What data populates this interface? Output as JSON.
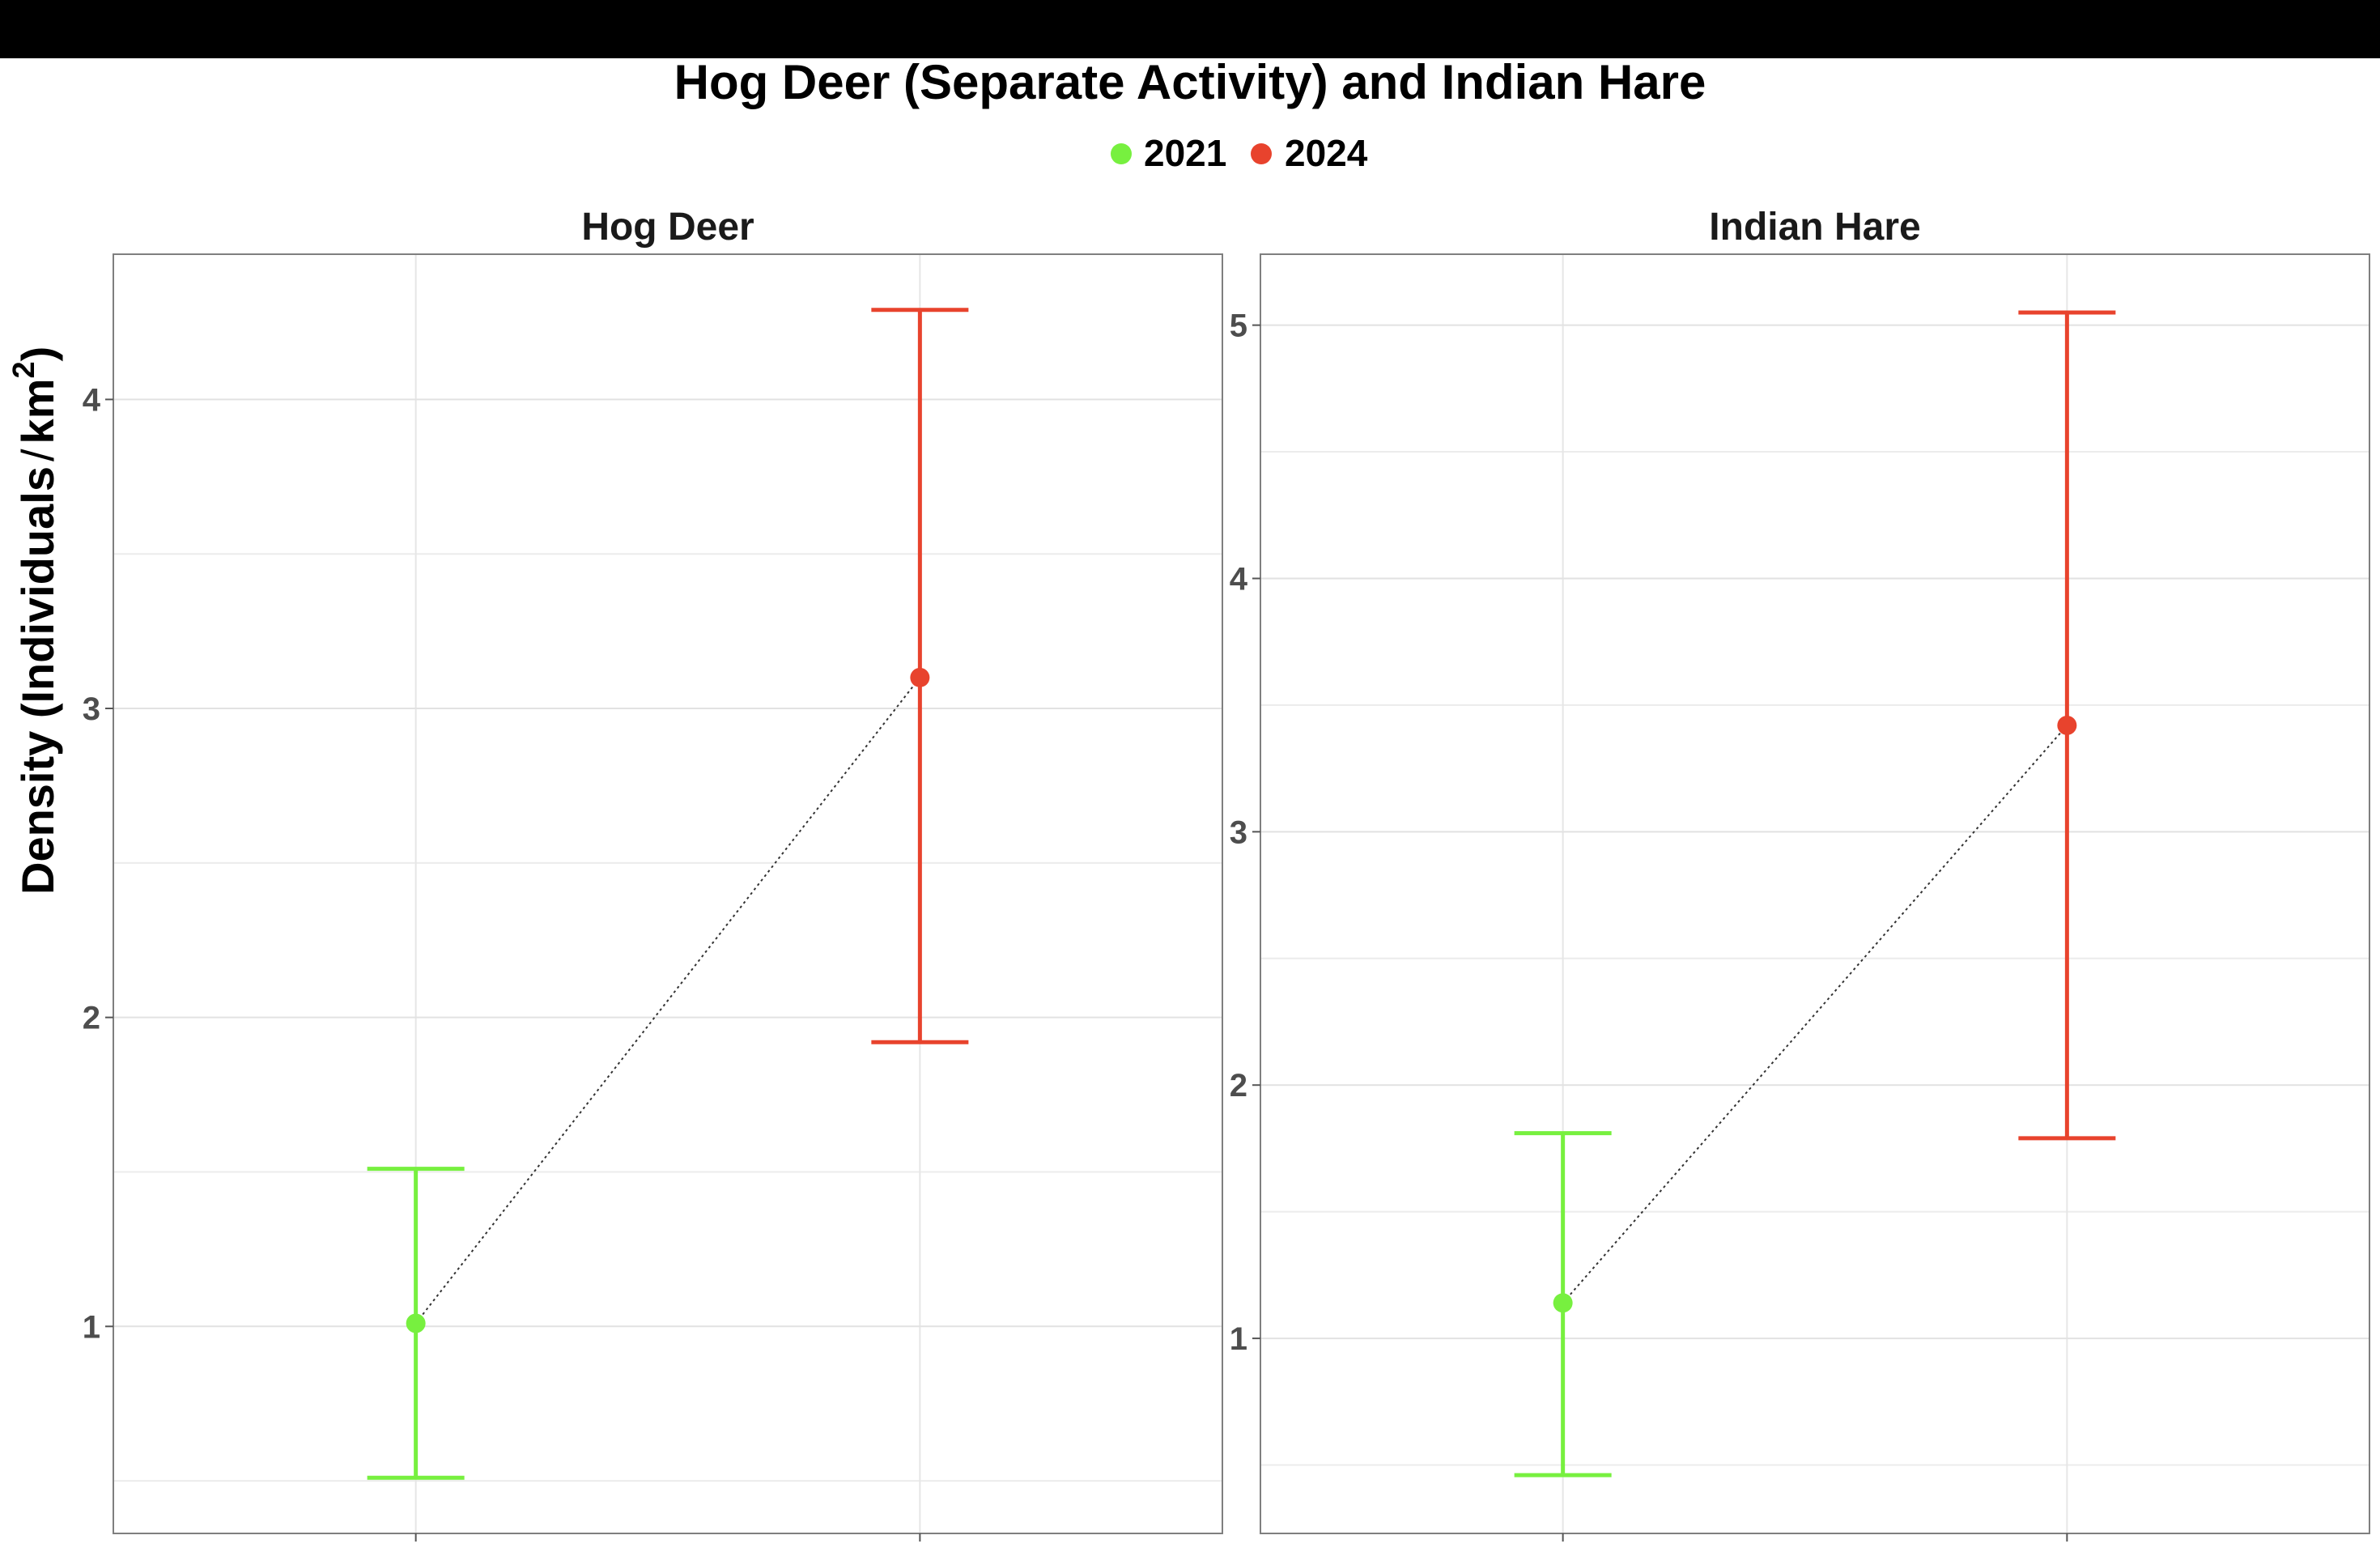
{
  "chart_data": {
    "type": "scatter",
    "title": "Hog Deer (Separate Activity) and Indian Hare",
    "ylabel_main": "Density (Individuals",
    "ylabel_unit": "km",
    "ylabel_exponent": "2",
    "ylabel_close": ")",
    "legend": [
      {
        "label": "2021",
        "color": "#77f03f"
      },
      {
        "label": "2024",
        "color": "#e8432d"
      }
    ],
    "legend_position": "top-center",
    "grid": true,
    "connector_style": "dotted",
    "panels": [
      {
        "title": "Hog Deer",
        "ylim": [
          0.33,
          4.47
        ],
        "yticks": [
          1,
          2,
          3,
          4
        ],
        "ytick_labels": [
          "1",
          "2",
          "3",
          "4"
        ],
        "x": [
          "2021",
          "2024"
        ],
        "points": [
          {
            "year": "2021",
            "estimate": 1.01,
            "lower": 0.51,
            "upper": 1.51
          },
          {
            "year": "2024",
            "estimate": 3.1,
            "lower": 1.92,
            "upper": 4.29
          }
        ]
      },
      {
        "title": "Indian Hare",
        "ylim": [
          0.23,
          5.28
        ],
        "yticks": [
          1,
          2,
          3,
          4,
          5
        ],
        "ytick_labels": [
          "1",
          "2",
          "3",
          "4",
          "5"
        ],
        "x": [
          "2021",
          "2024"
        ],
        "points": [
          {
            "year": "2021",
            "estimate": 1.14,
            "lower": 0.46,
            "upper": 1.81
          },
          {
            "year": "2024",
            "estimate": 3.42,
            "lower": 1.79,
            "upper": 5.05
          }
        ]
      }
    ]
  }
}
